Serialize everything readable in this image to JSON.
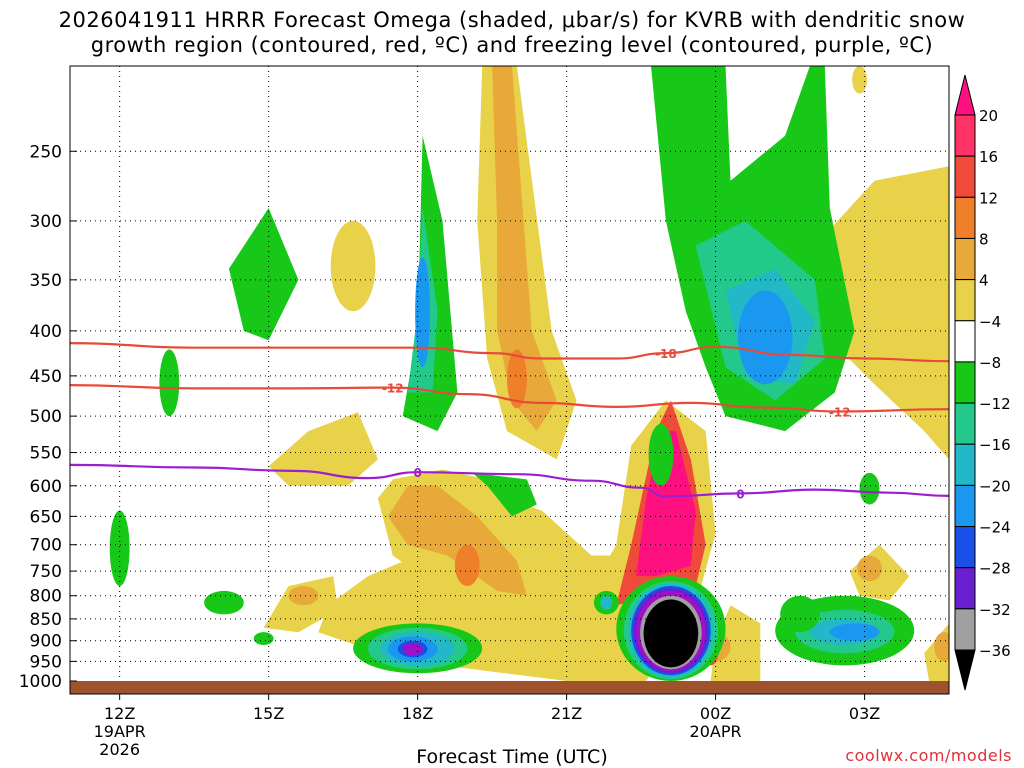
{
  "title_line1": "2026041911 HRRR Forecast Omega (shaded, μbar/s) for KVRB with dendritic snow",
  "title_line2": "growth region (contoured, red, ºC) and freezing level (contoured, purple, ºC)",
  "credit": "coolwx.com/models",
  "chart_data": {
    "type": "heatmap",
    "title": "2026041911 HRRR Forecast Omega (shaded, μbar/s) for KVRB with dendritic snow growth region (contoured, red, ºC) and freezing level (contoured, purple, ºC)",
    "xlabel": "Forecast Time (UTC)",
    "ylabel": "",
    "y_scale": "log-pressure",
    "y_reversed": true,
    "xlim_hours_after_2026041912": [
      -1.0,
      16.7
    ],
    "ylim_hPa": [
      1000,
      200
    ],
    "grid": "dotted",
    "x_ticks": [
      {
        "hour": 0,
        "label": "12Z",
        "sub1": "19APR",
        "sub2": "2026"
      },
      {
        "hour": 3,
        "label": "15Z",
        "sub1": "",
        "sub2": ""
      },
      {
        "hour": 6,
        "label": "18Z",
        "sub1": "",
        "sub2": ""
      },
      {
        "hour": 9,
        "label": "21Z",
        "sub1": "",
        "sub2": ""
      },
      {
        "hour": 12,
        "label": "00Z",
        "sub1": "20APR",
        "sub2": ""
      },
      {
        "hour": 15,
        "label": "03Z",
        "sub1": "",
        "sub2": ""
      }
    ],
    "y_ticks": [
      "250",
      "300",
      "350",
      "400",
      "450",
      "500",
      "550",
      "600",
      "650",
      "700",
      "750",
      "800",
      "850",
      "900",
      "950",
      "1000"
    ],
    "colorbar": {
      "labels": [
        "20",
        "16",
        "12",
        "8",
        "4",
        "−4",
        "−8",
        "−12",
        "−16",
        "−20",
        "−24",
        "−28",
        "−32",
        "−36"
      ],
      "colors": [
        "#ff3366",
        "#f04a3a",
        "#f07f2a",
        "#e8a83a",
        "#e8d24a",
        "#ffffff",
        "#18c818",
        "#22c98a",
        "#22b8c8",
        "#1a98f0",
        "#1a50e8",
        "#6a20d0",
        "#a010c8",
        "#a0a0a0"
      ],
      "top_triangle_color": "#ff1080",
      "bottom_triangle_color": "#000000"
    },
    "contours": [
      {
        "label": "-18",
        "color": "#e84a3a",
        "points": [
          [
            -1.0,
            413
          ],
          [
            1.5,
            418
          ],
          [
            4.0,
            418
          ],
          [
            6.0,
            418
          ],
          [
            7.5,
            424
          ],
          [
            8.5,
            430
          ],
          [
            10.0,
            430
          ],
          [
            11.0,
            424
          ],
          [
            12.0,
            417
          ],
          [
            13.5,
            426
          ],
          [
            15.0,
            430
          ],
          [
            16.7,
            433
          ]
        ]
      },
      {
        "label": "-12",
        "color": "#e84a3a",
        "points": [
          [
            -1.0,
            461
          ],
          [
            1.5,
            465
          ],
          [
            3.5,
            465
          ],
          [
            5.5,
            464
          ],
          [
            7.0,
            472
          ],
          [
            8.5,
            483
          ],
          [
            10.0,
            488
          ],
          [
            11.5,
            483
          ],
          [
            13.0,
            489
          ],
          [
            14.5,
            494
          ],
          [
            16.7,
            491
          ]
        ]
      },
      {
        "label": "0",
        "color": "#9b1fd0",
        "points": [
          [
            -1.0,
            568
          ],
          [
            1.5,
            572
          ],
          [
            3.5,
            577
          ],
          [
            5.0,
            588
          ],
          [
            6.0,
            579
          ],
          [
            8.0,
            582
          ],
          [
            9.5,
            592
          ],
          [
            10.5,
            603
          ],
          [
            11.0,
            617
          ],
          [
            12.5,
            612
          ],
          [
            14.0,
            606
          ],
          [
            15.5,
            611
          ],
          [
            16.7,
            616
          ]
        ]
      }
    ],
    "regions": [
      {
        "value": -36,
        "color": "#000000",
        "x": 11.0,
        "p": 890
      },
      {
        "value": 20,
        "color": "#ff1080",
        "x": 11.0,
        "p": 640
      },
      {
        "value": -28,
        "color": "#a010c8",
        "x": 5.9,
        "p": 920
      },
      {
        "value": -16,
        "color": "#1a98f0",
        "x": 5.9,
        "p": 400
      },
      {
        "value": -16,
        "color": "#1a98f0",
        "x": 13.0,
        "p": 410
      },
      {
        "value": -16,
        "color": "#1a98f0",
        "x": 14.5,
        "p": 880
      },
      {
        "value": 12,
        "color": "#f07f2a",
        "x": 6.8,
        "p": 750
      },
      {
        "value": 12,
        "color": "#f07f2a",
        "x": 8.0,
        "p": 460
      }
    ],
    "ground_color": "#a0522d"
  }
}
